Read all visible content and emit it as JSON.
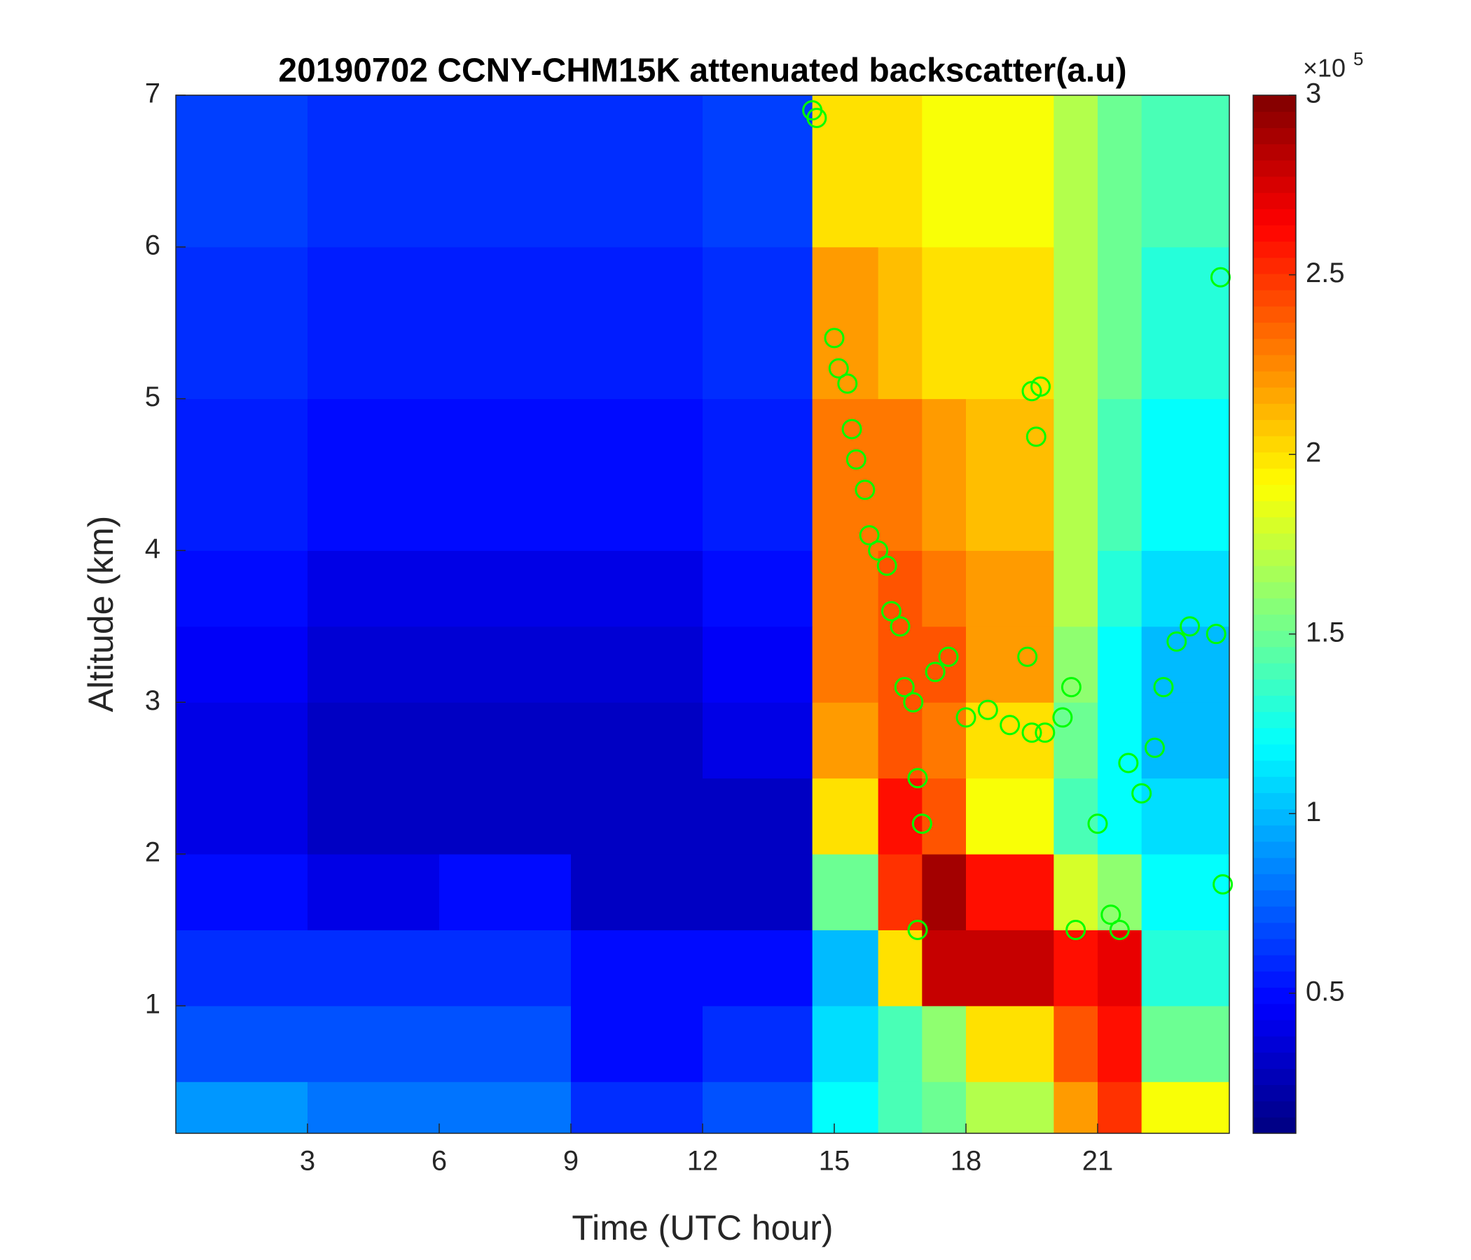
{
  "chart_data": {
    "type": "heatmap",
    "title": "20190702 CCNY-CHM15K attenuated backscatter(a.u)",
    "x_label": "Time (UTC hour)",
    "y_label": "Altitude (km)",
    "xlim": [
      0,
      24
    ],
    "xticks": [
      3,
      6,
      9,
      12,
      15,
      18,
      21
    ],
    "ylim": [
      0.16,
      7
    ],
    "yticks": [
      1,
      2,
      3,
      4,
      5,
      6,
      7
    ],
    "x_edges": [
      0,
      3,
      6,
      9,
      12,
      14.5,
      16,
      17,
      18,
      20,
      21,
      22,
      24
    ],
    "y_edges": [
      0.16,
      0.5,
      1,
      1.5,
      2,
      2.5,
      3,
      3.5,
      4,
      5,
      6,
      7
    ],
    "z": [
      [
        0.9,
        0.8,
        0.8,
        0.6,
        0.7,
        1.2,
        1.4,
        1.5,
        1.7,
        2.2,
        2.5,
        1.9
      ],
      [
        0.7,
        0.7,
        0.7,
        0.5,
        0.6,
        1.1,
        1.4,
        1.6,
        2.0,
        2.4,
        2.6,
        1.5
      ],
      [
        0.6,
        0.6,
        0.6,
        0.5,
        0.5,
        1.0,
        2.0,
        2.8,
        2.8,
        2.6,
        2.7,
        1.3
      ],
      [
        0.5,
        0.4,
        0.5,
        0.3,
        0.3,
        1.5,
        2.5,
        2.9,
        2.6,
        1.8,
        1.6,
        1.2
      ],
      [
        0.4,
        0.3,
        0.3,
        0.3,
        0.3,
        2.0,
        2.6,
        2.4,
        1.9,
        1.4,
        1.2,
        1.1
      ],
      [
        0.4,
        0.3,
        0.3,
        0.3,
        0.4,
        2.2,
        2.4,
        2.3,
        2.0,
        1.5,
        1.2,
        1.0
      ],
      [
        0.45,
        0.35,
        0.35,
        0.35,
        0.45,
        2.3,
        2.4,
        2.4,
        2.2,
        1.6,
        1.2,
        1.0
      ],
      [
        0.5,
        0.4,
        0.4,
        0.4,
        0.5,
        2.3,
        2.4,
        2.3,
        2.2,
        1.7,
        1.3,
        1.1
      ],
      [
        0.55,
        0.5,
        0.5,
        0.5,
        0.55,
        2.3,
        2.3,
        2.2,
        2.1,
        1.7,
        1.4,
        1.2
      ],
      [
        0.6,
        0.55,
        0.55,
        0.55,
        0.6,
        2.2,
        2.1,
        2.0,
        2.0,
        1.7,
        1.5,
        1.3
      ],
      [
        0.65,
        0.6,
        0.6,
        0.6,
        0.65,
        2.0,
        2.0,
        1.9,
        1.9,
        1.7,
        1.5,
        1.4
      ]
    ],
    "colormap": "jet",
    "clim": [
      0.11,
      3
    ],
    "colorbar_ticks": [
      0.5,
      1,
      1.5,
      2,
      2.5,
      3
    ],
    "colorbar_multiplier": "×10",
    "colorbar_exponent": "5",
    "scatter": {
      "color": "#00ff00",
      "x": [
        14.5,
        14.6,
        15,
        15.1,
        15.3,
        15.4,
        15.5,
        15.7,
        15.8,
        16.0,
        16.2,
        16.3,
        16.5,
        16.6,
        16.8,
        16.9,
        17.0,
        16.9,
        17.3,
        17.6,
        18,
        18.5,
        19,
        19.4,
        19.5,
        19.5,
        19.7,
        19.6,
        19.8,
        20.2,
        20.4,
        20.5,
        21,
        21.3,
        21.5,
        21.7,
        22,
        22.3,
        22.5,
        22.8,
        23.1,
        23.7,
        23.8,
        23.85
      ],
      "y": [
        6.9,
        6.85,
        5.4,
        5.2,
        5.1,
        4.8,
        4.6,
        4.4,
        4.1,
        4.0,
        3.9,
        3.6,
        3.5,
        3.1,
        3.0,
        2.5,
        2.2,
        1.5,
        3.2,
        3.3,
        2.9,
        2.95,
        2.85,
        3.3,
        2.8,
        5.05,
        5.08,
        4.75,
        2.8,
        2.9,
        3.1,
        1.5,
        2.2,
        1.6,
        1.5,
        2.6,
        2.4,
        2.7,
        3.1,
        3.4,
        3.5,
        3.45,
        5.8,
        1.8
      ]
    }
  }
}
